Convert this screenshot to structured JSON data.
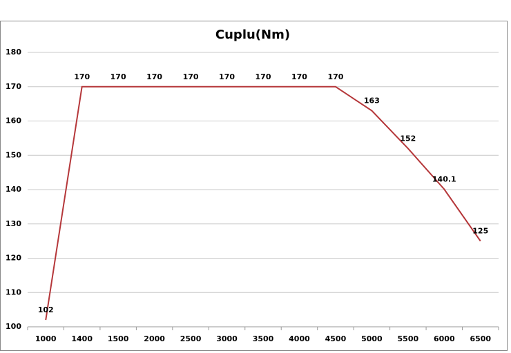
{
  "chart_data": {
    "type": "line",
    "title": "Cuplu(Nm)",
    "categories": [
      "1000",
      "1400",
      "1500",
      "2000",
      "2500",
      "3000",
      "3500",
      "4000",
      "4500",
      "5000",
      "5500",
      "6000",
      "6500"
    ],
    "series": [
      {
        "name": "Cuplu(Nm)",
        "color": "#b5373a",
        "values": [
          102,
          170,
          170,
          170,
          170,
          170,
          170,
          170,
          170,
          163,
          152,
          140.1,
          125
        ]
      }
    ],
    "ylim": [
      100,
      180
    ],
    "yticks": [
      100,
      110,
      120,
      130,
      140,
      150,
      160,
      170,
      180
    ],
    "grid": true
  }
}
